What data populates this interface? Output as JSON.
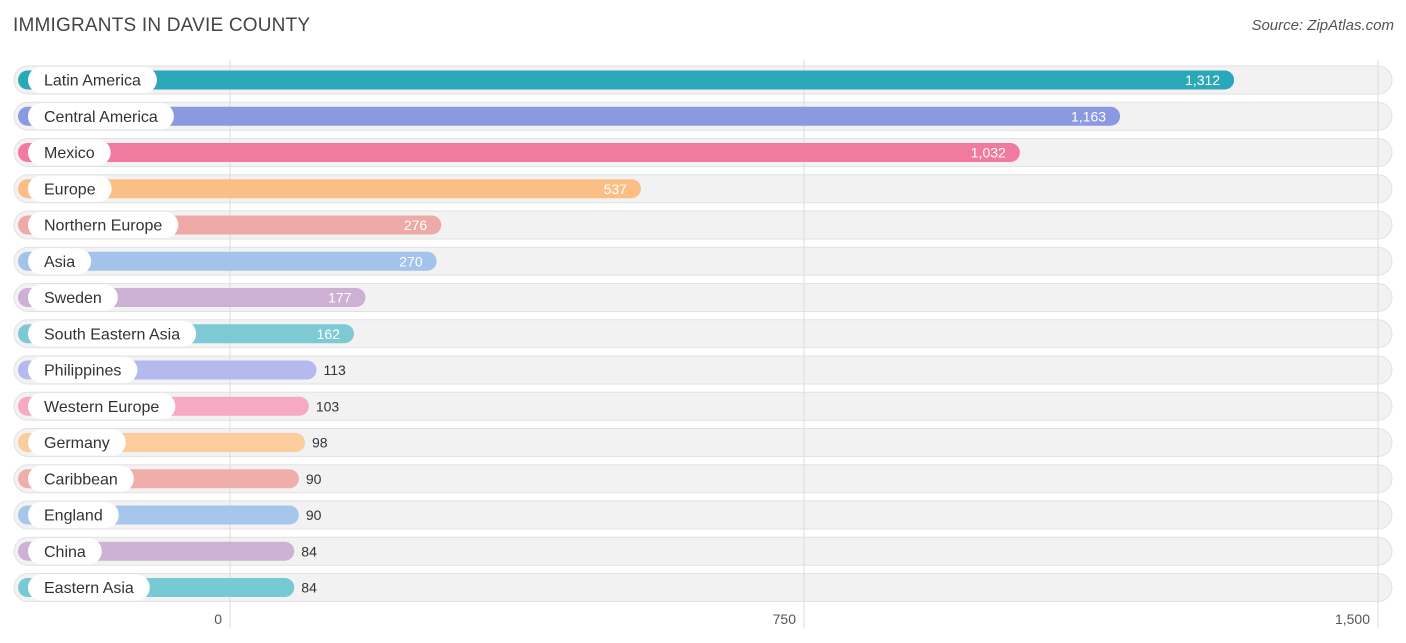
{
  "title": "IMMIGRANTS IN DAVIE COUNTY",
  "source": "Source: ZipAtlas.com",
  "chart_data": {
    "type": "bar",
    "orientation": "horizontal",
    "title": "IMMIGRANTS IN DAVIE COUNTY",
    "categories": [
      "Latin America",
      "Central America",
      "Mexico",
      "Europe",
      "Northern Europe",
      "Asia",
      "Sweden",
      "South Eastern Asia",
      "Philippines",
      "Western Europe",
      "Germany",
      "Caribbean",
      "England",
      "China",
      "Eastern Asia"
    ],
    "values": [
      1312,
      1163,
      1032,
      537,
      276,
      270,
      177,
      162,
      113,
      103,
      98,
      90,
      90,
      84,
      84
    ],
    "value_labels": [
      "1,312",
      "1,163",
      "1,032",
      "537",
      "276",
      "270",
      "177",
      "162",
      "113",
      "103",
      "98",
      "90",
      "90",
      "84",
      "84"
    ],
    "colors": [
      "#2ba8b8",
      "#8a99e0",
      "#f07aa0",
      "#fbbf86",
      "#efa9a6",
      "#a3c3ea",
      "#cdb0d3",
      "#7ecad4",
      "#b4b9ee",
      "#f6a9c3",
      "#fbcc9e",
      "#f0aeaa",
      "#a7c6ec",
      "#cdb2d6",
      "#77c9d3"
    ],
    "xlim": [
      0,
      1500
    ],
    "xticks": [
      0,
      750,
      1500
    ],
    "xtick_labels": [
      "0",
      "750",
      "1,500"
    ],
    "grid": true
  }
}
